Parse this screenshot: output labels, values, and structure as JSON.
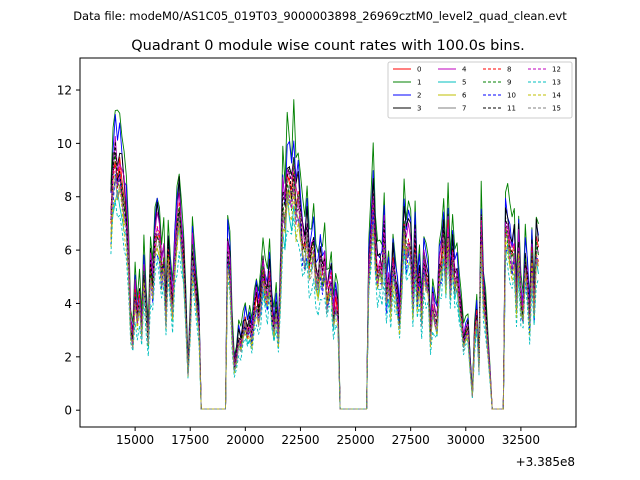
{
  "figure": {
    "suptitle": "Data file: modeM0/AS1C05_019T03_9000003898_26969cztM0_level2_quad_clean.evt",
    "title": "Quadrant 0 module wise count rates with 100.0s bins."
  },
  "chart_data": {
    "type": "line",
    "title": "Quadrant 0 module wise count rates with 100.0s bins.",
    "xlabel": "",
    "ylabel": "",
    "x_offset_label": "+3.385e8",
    "xlim": [
      12500,
      35000
    ],
    "ylim": [
      -0.63,
      13.2
    ],
    "xticks": [
      15000,
      17500,
      20000,
      22500,
      25000,
      27500,
      30000,
      32500
    ],
    "xtick_labels": [
      "15000",
      "17500",
      "20000",
      "22500",
      "25000",
      "27500",
      "30000",
      "32500"
    ],
    "yticks": [
      0,
      2,
      4,
      6,
      8,
      10,
      12
    ],
    "ytick_labels": [
      "0",
      "2",
      "4",
      "6",
      "8",
      "10",
      "12"
    ],
    "grid": false,
    "legend_position": "top-right",
    "x_start": 13900,
    "x_step": 100,
    "base_curve": [
      7.9,
      9.6,
      10.2,
      9.6,
      9.9,
      9.1,
      8.6,
      7.8,
      6.2,
      3.4,
      2.8,
      4.8,
      3.8,
      4.6,
      3.2,
      5.6,
      4.1,
      2.8,
      5.8,
      5.0,
      6.8,
      7.4,
      7.1,
      5.6,
      6.2,
      3.8,
      6.6,
      5.1,
      4.2,
      6.3,
      7.4,
      8.3,
      7.1,
      6.1,
      4.0,
      1.5,
      3.5,
      6.5,
      5.5,
      4.5,
      3.6,
      0.05,
      0.05,
      0.05,
      0.05,
      0.05,
      0.05,
      0.05,
      0.05,
      0.05,
      0.05,
      0.05,
      0.05,
      6.6,
      5.9,
      3.2,
      1.8,
      2.2,
      2.9,
      2.7,
      3.2,
      3.6,
      3.1,
      3.4,
      3.0,
      4.0,
      4.5,
      3.9,
      4.6,
      5.7,
      5.0,
      4.6,
      5.5,
      4.0,
      3.3,
      4.2,
      3.0,
      5.2,
      8.5,
      7.8,
      9.6,
      9.4,
      8.8,
      9.9,
      8.2,
      8.6,
      7.8,
      6.8,
      6.6,
      7.3,
      5.9,
      6.3,
      6.8,
      5.6,
      5.2,
      6.0,
      5.5,
      6.0,
      4.5,
      5.0,
      5.4,
      3.9,
      4.4,
      4.0,
      0.05,
      0.05,
      0.05,
      0.05,
      0.05,
      0.05,
      0.05,
      0.05,
      0.05,
      0.05,
      0.05,
      0.05,
      0.05,
      5.8,
      7.0,
      8.8,
      6.5,
      5.5,
      5.8,
      5.5,
      7.2,
      4.6,
      5.4,
      4.4,
      6.0,
      5.2,
      4.6,
      3.7,
      5.5,
      7.6,
      6.6,
      7.0,
      6.8,
      4.4,
      6.8,
      4.7,
      5.5,
      3.9,
      6.1,
      5.5,
      5.1,
      3.0,
      4.3,
      3.8,
      3.6,
      5.6,
      6.0,
      7.3,
      5.4,
      7.4,
      5.0,
      6.6,
      5.3,
      5.5,
      4.6,
      3.8,
      2.8,
      3.2,
      3.3,
      1.8,
      0.6,
      3.0,
      3.9,
      1.8,
      7.5,
      4.8,
      3.9,
      2.6,
      1.5,
      0.05,
      0.05,
      0.05,
      0.05,
      0.05,
      0.05,
      7.4,
      7.3,
      6.6,
      6.2,
      6.6,
      4.4,
      6.7,
      4.5,
      4.0,
      6.1,
      5.2,
      3.6,
      6.4,
      4.1,
      6.8,
      6.4
    ],
    "series": [
      {
        "name": "0",
        "color": "#ff0000",
        "dashed": false,
        "scale": 0.92
      },
      {
        "name": "1",
        "color": "#008000",
        "dashed": false,
        "scale": 1.12
      },
      {
        "name": "2",
        "color": "#0000ff",
        "dashed": false,
        "scale": 1.04
      },
      {
        "name": "3",
        "color": "#000000",
        "dashed": false,
        "scale": 1.0
      },
      {
        "name": "4",
        "color": "#bf00bf",
        "dashed": false,
        "scale": 0.97
      },
      {
        "name": "5",
        "color": "#00bfbf",
        "dashed": false,
        "scale": 0.82
      },
      {
        "name": "6",
        "color": "#bfbf00",
        "dashed": false,
        "scale": 0.86
      },
      {
        "name": "7",
        "color": "#808080",
        "dashed": false,
        "scale": 0.88
      },
      {
        "name": "8",
        "color": "#ff0000",
        "dashed": true,
        "scale": 0.91
      },
      {
        "name": "9",
        "color": "#008000",
        "dashed": true,
        "scale": 0.9
      },
      {
        "name": "10",
        "color": "#0000ff",
        "dashed": true,
        "scale": 0.84
      },
      {
        "name": "11",
        "color": "#000000",
        "dashed": true,
        "scale": 0.93
      },
      {
        "name": "12",
        "color": "#bf00bf",
        "dashed": true,
        "scale": 0.89
      },
      {
        "name": "13",
        "color": "#00bfbf",
        "dashed": true,
        "scale": 0.74
      },
      {
        "name": "14",
        "color": "#bfbf00",
        "dashed": true,
        "scale": 0.82
      },
      {
        "name": "15",
        "color": "#808080",
        "dashed": true,
        "scale": 0.85
      }
    ]
  }
}
